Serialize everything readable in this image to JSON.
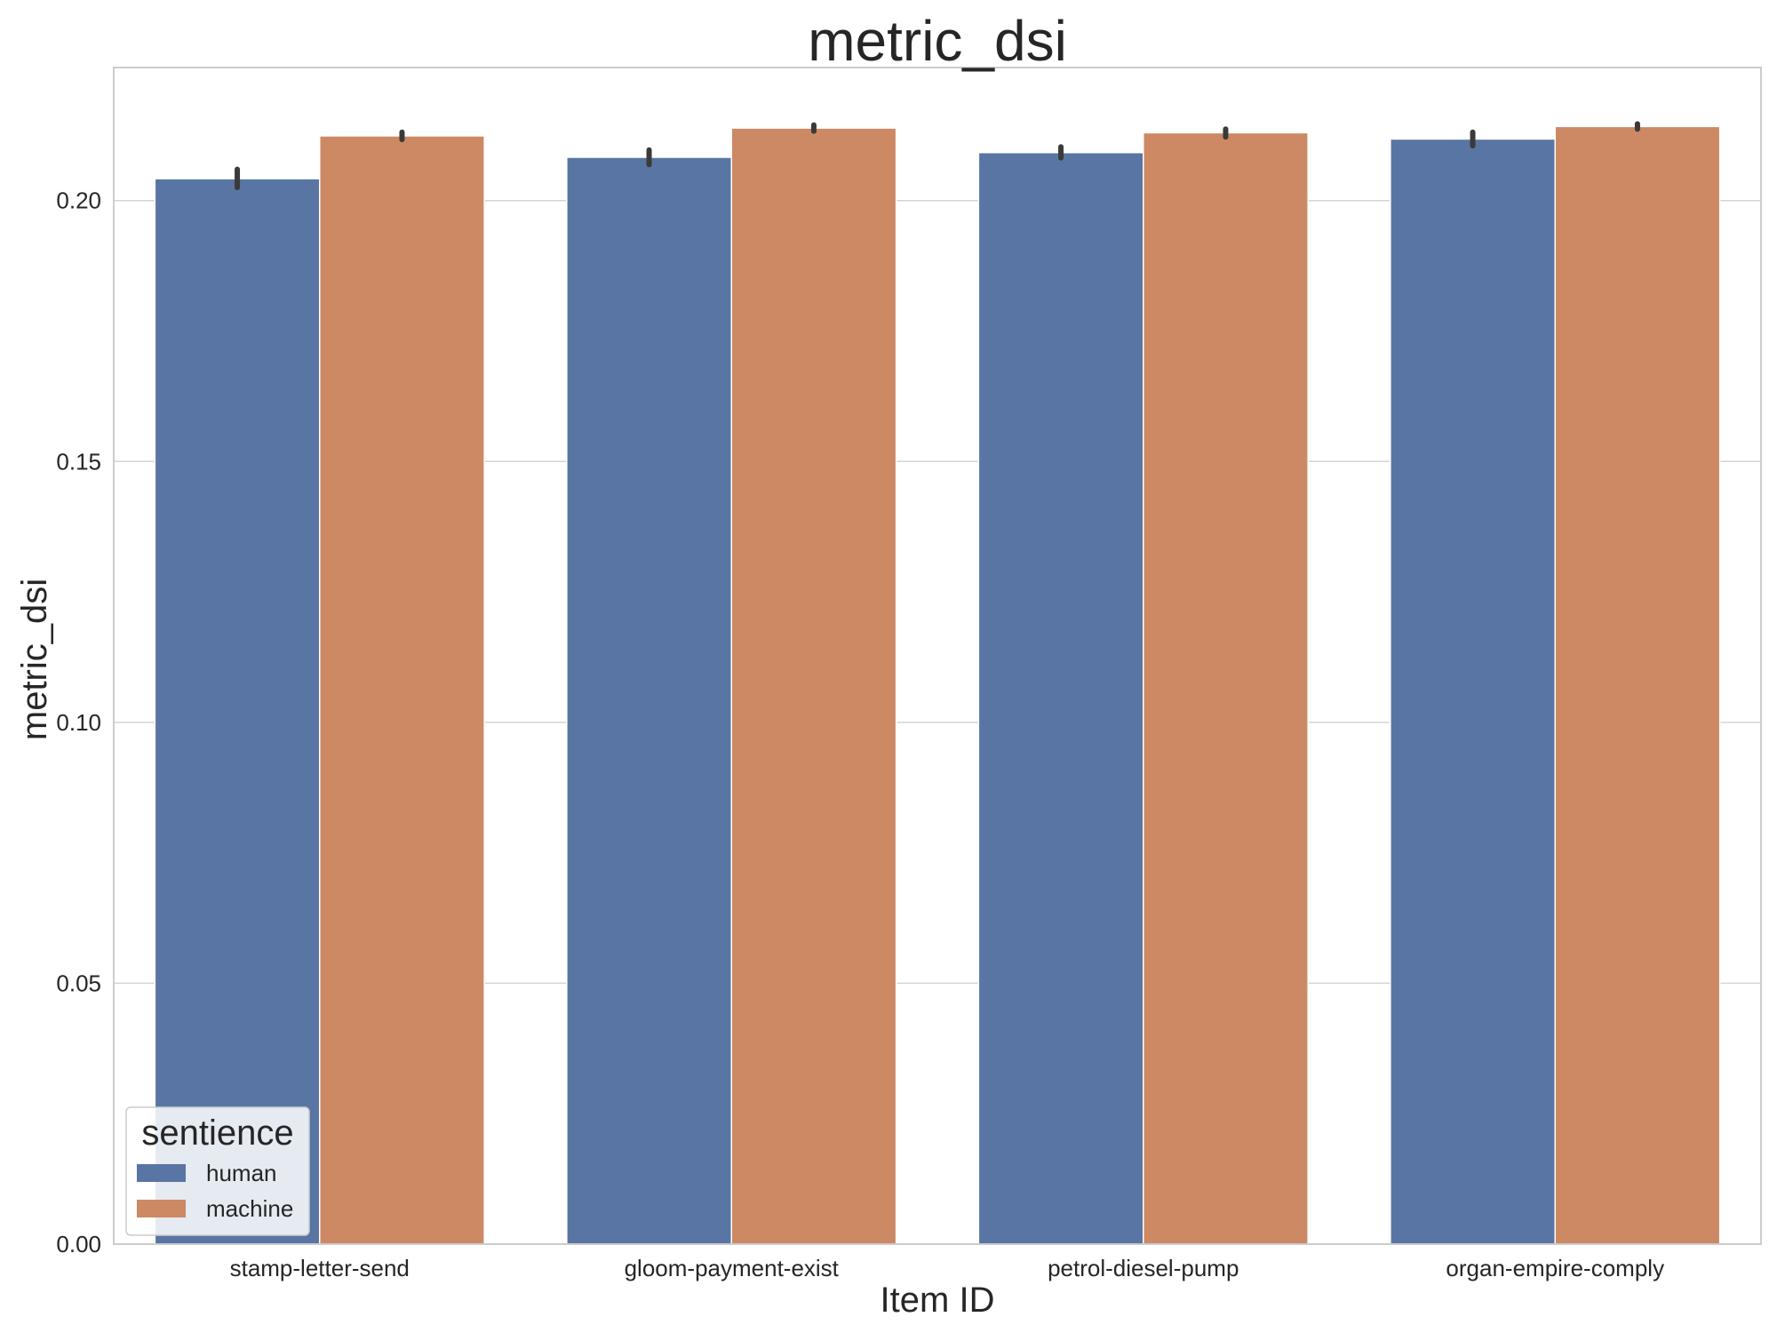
{
  "chart_data": {
    "type": "bar",
    "title": "metric_dsi",
    "xlabel": "Item ID",
    "ylabel": "metric_dsi",
    "categories": [
      "stamp-letter-send",
      "gloom-payment-exist",
      "petrol-diesel-pump",
      "organ-empire-comply"
    ],
    "series": [
      {
        "name": "human",
        "color": "#5975a4",
        "values": [
          0.2042,
          0.2083,
          0.2092,
          0.2118
        ],
        "err_low": [
          0.2025,
          0.2069,
          0.2082,
          0.2105
        ],
        "err_high": [
          0.206,
          0.2097,
          0.2103,
          0.2131
        ]
      },
      {
        "name": "machine",
        "color": "#cc8963",
        "values": [
          0.2124,
          0.2139,
          0.213,
          0.2142
        ],
        "err_low": [
          0.2117,
          0.2133,
          0.2122,
          0.2137
        ],
        "err_high": [
          0.2131,
          0.2145,
          0.2137,
          0.2147
        ]
      }
    ],
    "ylim": [
      0,
      0.2255
    ],
    "yticks": [
      "0.00",
      "0.05",
      "0.10",
      "0.15",
      "0.20"
    ],
    "grid": true,
    "legend": {
      "title": "sentience",
      "position": "lower-left"
    }
  }
}
